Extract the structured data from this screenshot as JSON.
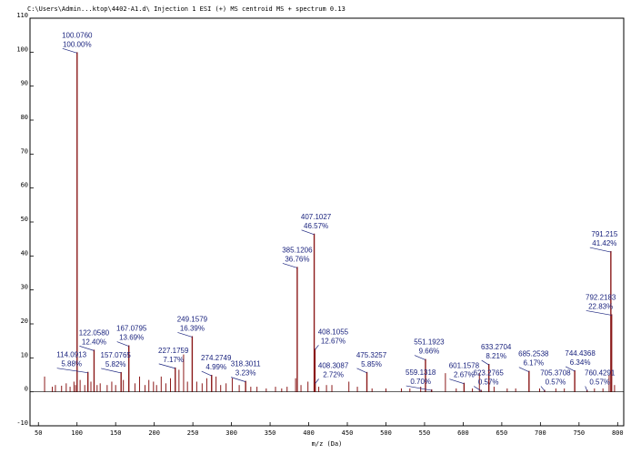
{
  "window_title": "C:\\Users\\Admin...ktop\\4402-A1.d\\  Injection 1 ESI (+) MS centroid MS + spectrum 0.13",
  "chart_data": {
    "type": "bar",
    "xlabel": "m/z (Da)",
    "xlim": [
      45,
      802
    ],
    "ylim": [
      -10,
      110
    ],
    "xticks": [
      50,
      100,
      150,
      200,
      250,
      300,
      350,
      400,
      450,
      500,
      550,
      600,
      650,
      700,
      750,
      800
    ],
    "yticks": [
      -10,
      0,
      10,
      20,
      30,
      40,
      50,
      60,
      70,
      80,
      90,
      100,
      110
    ],
    "grid": false,
    "bar_color": "#8b1a1a",
    "label_color": "#1a237e",
    "labeled_peaks": [
      {
        "mz": 100.076,
        "intensity": 100.0,
        "mz_label": "100.0760",
        "pct_label": "100.00%"
      },
      {
        "mz": 114.0913,
        "intensity": 5.88,
        "mz_label": "114.0913",
        "pct_label": "5.88%"
      },
      {
        "mz": 122.058,
        "intensity": 12.4,
        "mz_label": "122.0580",
        "pct_label": "12.40%"
      },
      {
        "mz": 157.0765,
        "intensity": 5.82,
        "mz_label": "157.0765",
        "pct_label": "5.82%"
      },
      {
        "mz": 167.0795,
        "intensity": 13.69,
        "mz_label": "167.0795",
        "pct_label": "13.69%"
      },
      {
        "mz": 227.1759,
        "intensity": 7.17,
        "mz_label": "227.1759",
        "pct_label": "7.17%"
      },
      {
        "mz": 249.1579,
        "intensity": 16.39,
        "mz_label": "249.1579",
        "pct_label": "16.39%"
      },
      {
        "mz": 274.2749,
        "intensity": 4.99,
        "mz_label": "274.2749",
        "pct_label": "4.99%"
      },
      {
        "mz": 318.3011,
        "intensity": 3.23,
        "mz_label": "318.3011",
        "pct_label": "3.23%"
      },
      {
        "mz": 385.1206,
        "intensity": 36.76,
        "mz_label": "385.1206",
        "pct_label": "36.76%"
      },
      {
        "mz": 407.1027,
        "intensity": 46.57,
        "mz_label": "407.1027",
        "pct_label": "46.57%"
      },
      {
        "mz": 408.1055,
        "intensity": 12.67,
        "mz_label": "408.1055",
        "pct_label": "12.67%"
      },
      {
        "mz": 408.3087,
        "intensity": 2.72,
        "mz_label": "408.3087",
        "pct_label": "2.72%"
      },
      {
        "mz": 475.3257,
        "intensity": 5.85,
        "mz_label": "475.3257",
        "pct_label": "5.85%"
      },
      {
        "mz": 551.1923,
        "intensity": 9.66,
        "mz_label": "551.1923",
        "pct_label": "9.66%"
      },
      {
        "mz": 559.1318,
        "intensity": 0.7,
        "mz_label": "559.1318",
        "pct_label": "0.70%"
      },
      {
        "mz": 601.1578,
        "intensity": 2.67,
        "mz_label": "601.1578",
        "pct_label": "2.67%"
      },
      {
        "mz": 623.2765,
        "intensity": 0.57,
        "mz_label": "623.2765",
        "pct_label": "0.57%"
      },
      {
        "mz": 633.2704,
        "intensity": 8.21,
        "mz_label": "633.2704",
        "pct_label": "8.21%"
      },
      {
        "mz": 685.2538,
        "intensity": 6.17,
        "mz_label": "685.2538",
        "pct_label": "6.17%"
      },
      {
        "mz": 705.3708,
        "intensity": 0.57,
        "mz_label": "705.3708",
        "pct_label": "0.57%"
      },
      {
        "mz": 744.4368,
        "intensity": 6.34,
        "mz_label": "744.4368",
        "pct_label": "6.34%"
      },
      {
        "mz": 760.4291,
        "intensity": 0.57,
        "mz_label": "760.4291",
        "pct_label": "0.57%"
      },
      {
        "mz": 791.215,
        "intensity": 41.42,
        "mz_label": "791.215",
        "pct_label": "41.42%"
      },
      {
        "mz": 792.2183,
        "intensity": 22.83,
        "mz_label": "792.2183",
        "pct_label": "22.83%"
      }
    ],
    "minor_peaks": [
      {
        "mz": 58,
        "intensity": 4.5
      },
      {
        "mz": 68,
        "intensity": 1.5
      },
      {
        "mz": 72,
        "intensity": 2.0
      },
      {
        "mz": 80,
        "intensity": 1.8
      },
      {
        "mz": 86,
        "intensity": 2.5
      },
      {
        "mz": 91,
        "intensity": 1.5
      },
      {
        "mz": 96,
        "intensity": 3.0
      },
      {
        "mz": 98,
        "intensity": 2.0
      },
      {
        "mz": 104,
        "intensity": 3.5
      },
      {
        "mz": 110,
        "intensity": 2.0
      },
      {
        "mz": 118,
        "intensity": 3.0
      },
      {
        "mz": 126,
        "intensity": 2.0
      },
      {
        "mz": 130,
        "intensity": 2.5
      },
      {
        "mz": 139,
        "intensity": 2.0
      },
      {
        "mz": 145,
        "intensity": 3.0
      },
      {
        "mz": 150,
        "intensity": 2.0
      },
      {
        "mz": 160,
        "intensity": 3.5
      },
      {
        "mz": 175,
        "intensity": 2.5
      },
      {
        "mz": 181,
        "intensity": 4.5
      },
      {
        "mz": 188,
        "intensity": 2.0
      },
      {
        "mz": 193,
        "intensity": 3.5
      },
      {
        "mz": 199,
        "intensity": 3.0
      },
      {
        "mz": 203,
        "intensity": 2.0
      },
      {
        "mz": 209,
        "intensity": 4.5
      },
      {
        "mz": 215,
        "intensity": 2.5
      },
      {
        "mz": 221,
        "intensity": 4.0
      },
      {
        "mz": 232,
        "intensity": 6.5
      },
      {
        "mz": 238,
        "intensity": 11.0
      },
      {
        "mz": 243,
        "intensity": 3.0
      },
      {
        "mz": 255,
        "intensity": 3.0
      },
      {
        "mz": 262,
        "intensity": 2.5
      },
      {
        "mz": 268,
        "intensity": 4.0
      },
      {
        "mz": 280,
        "intensity": 4.5
      },
      {
        "mz": 286,
        "intensity": 2.0
      },
      {
        "mz": 293,
        "intensity": 2.5
      },
      {
        "mz": 301,
        "intensity": 4.0
      },
      {
        "mz": 310,
        "intensity": 2.0
      },
      {
        "mz": 325,
        "intensity": 1.5
      },
      {
        "mz": 333,
        "intensity": 1.5
      },
      {
        "mz": 345,
        "intensity": 1.0
      },
      {
        "mz": 357,
        "intensity": 1.5
      },
      {
        "mz": 365,
        "intensity": 1.0
      },
      {
        "mz": 372,
        "intensity": 1.5
      },
      {
        "mz": 383,
        "intensity": 4.0
      },
      {
        "mz": 390,
        "intensity": 2.0
      },
      {
        "mz": 399,
        "intensity": 3.0
      },
      {
        "mz": 413,
        "intensity": 1.5
      },
      {
        "mz": 423,
        "intensity": 2.0
      },
      {
        "mz": 430,
        "intensity": 2.0
      },
      {
        "mz": 452,
        "intensity": 3.0
      },
      {
        "mz": 463,
        "intensity": 1.5
      },
      {
        "mz": 482,
        "intensity": 1.0
      },
      {
        "mz": 500,
        "intensity": 1.0
      },
      {
        "mz": 520,
        "intensity": 1.0
      },
      {
        "mz": 531,
        "intensity": 1.0
      },
      {
        "mz": 545,
        "intensity": 1.5
      },
      {
        "mz": 577,
        "intensity": 5.5
      },
      {
        "mz": 591,
        "intensity": 1.0
      },
      {
        "mz": 612,
        "intensity": 1.0
      },
      {
        "mz": 621,
        "intensity": 5.5
      },
      {
        "mz": 640,
        "intensity": 1.5
      },
      {
        "mz": 657,
        "intensity": 1.0
      },
      {
        "mz": 668,
        "intensity": 1.0
      },
      {
        "mz": 699,
        "intensity": 1.0
      },
      {
        "mz": 720,
        "intensity": 1.0
      },
      {
        "mz": 731,
        "intensity": 1.0
      },
      {
        "mz": 770,
        "intensity": 1.0
      },
      {
        "mz": 781,
        "intensity": 1.0
      },
      {
        "mz": 789,
        "intensity": 5.0
      },
      {
        "mz": 796,
        "intensity": 2.0
      }
    ]
  }
}
